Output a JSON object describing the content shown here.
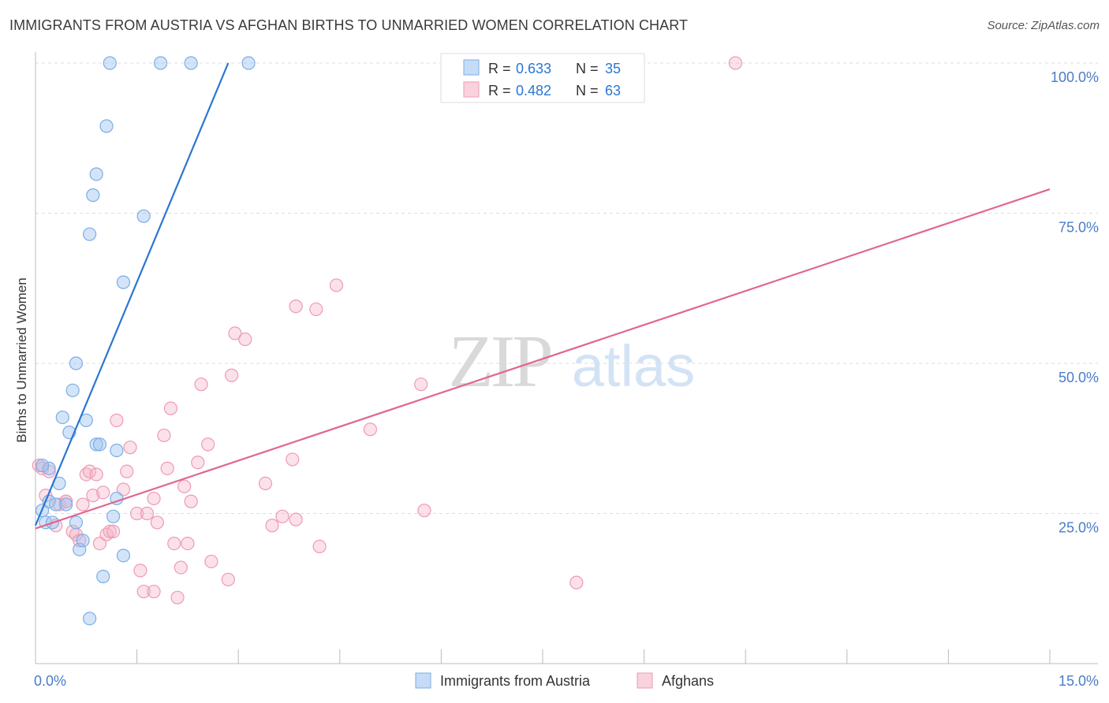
{
  "title": "IMMIGRANTS FROM AUSTRIA VS AFGHAN BIRTHS TO UNMARRIED WOMEN CORRELATION CHART",
  "source": "Source: ZipAtlas.com",
  "watermark": {
    "zip": "ZIP",
    "atlas": "atlas"
  },
  "colors": {
    "blue": "#7aaee6",
    "blue_fill": "rgba(160,196,240,0.45)",
    "blue_line": "#2b76d2",
    "pink": "#ee9ab4",
    "pink_fill": "rgba(245,180,200,0.40)",
    "pink_line": "#e06690",
    "tick_label": "#4a7cc9",
    "grid": "#dddddd"
  },
  "legend_top": [
    {
      "r_label": "R =",
      "r_value": "0.633",
      "n_label": "N =",
      "n_value": "35",
      "series": "blue"
    },
    {
      "r_label": "R =",
      "r_value": "0.482",
      "n_label": "N =",
      "n_value": "63",
      "series": "pink"
    }
  ],
  "legend_bottom": [
    {
      "label": "Immigrants from Austria",
      "series": "blue"
    },
    {
      "label": "Afghans",
      "series": "pink"
    }
  ],
  "chart_data": {
    "type": "scatter",
    "title": "IMMIGRANTS FROM AUSTRIA VS AFGHAN BIRTHS TO UNMARRIED WOMEN CORRELATION CHART",
    "xlabel": "",
    "ylabel": "Births to Unmarried Women",
    "xlim": [
      0,
      15
    ],
    "ylim": [
      0,
      100
    ],
    "x_tick_labels": [
      {
        "value": 0,
        "label": "0.0%"
      },
      {
        "value": 15,
        "label": "15.0%"
      }
    ],
    "y_tick_labels": [
      {
        "value": 25,
        "label": "25.0%"
      },
      {
        "value": 50,
        "label": "50.0%"
      },
      {
        "value": 75,
        "label": "75.0%"
      },
      {
        "value": 100,
        "label": "100.0%"
      }
    ],
    "series": [
      {
        "name": "Immigrants from Austria",
        "color": "blue",
        "R": 0.633,
        "N": 35,
        "trend": {
          "x": [
            0.0,
            2.85
          ],
          "y": [
            23.0,
            100.0
          ]
        },
        "points": [
          [
            0.1,
            25.5
          ],
          [
            0.15,
            23.5
          ],
          [
            0.2,
            27
          ],
          [
            0.25,
            23.5
          ],
          [
            0.3,
            26.5
          ],
          [
            0.35,
            30
          ],
          [
            0.4,
            41
          ],
          [
            0.45,
            26.5
          ],
          [
            0.5,
            38.5
          ],
          [
            0.55,
            45.5
          ],
          [
            0.6,
            50
          ],
          [
            0.6,
            23.5
          ],
          [
            0.65,
            19
          ],
          [
            0.7,
            20.5
          ],
          [
            0.75,
            40.5
          ],
          [
            0.8,
            71.5
          ],
          [
            0.8,
            7.5
          ],
          [
            0.85,
            78
          ],
          [
            0.9,
            81.5
          ],
          [
            0.9,
            36.5
          ],
          [
            0.95,
            36.5
          ],
          [
            1.0,
            14.5
          ],
          [
            1.05,
            89.5
          ],
          [
            1.1,
            100
          ],
          [
            1.15,
            24.5
          ],
          [
            1.2,
            27.5
          ],
          [
            1.2,
            35.5
          ],
          [
            1.3,
            63.5
          ],
          [
            1.3,
            18
          ],
          [
            1.6,
            74.5
          ],
          [
            1.85,
            100
          ],
          [
            2.3,
            100
          ],
          [
            3.15,
            100
          ],
          [
            0.2,
            32.5
          ],
          [
            0.1,
            33
          ]
        ]
      },
      {
        "name": "Afghans",
        "color": "pink",
        "R": 0.482,
        "N": 63,
        "trend": {
          "x": [
            0.0,
            15.0
          ],
          "y": [
            22.5,
            79.0
          ]
        },
        "points": [
          [
            0.05,
            33
          ],
          [
            0.15,
            28
          ],
          [
            0.3,
            23
          ],
          [
            0.35,
            26.5
          ],
          [
            0.45,
            27
          ],
          [
            0.45,
            27
          ],
          [
            0.55,
            22
          ],
          [
            0.6,
            21.5
          ],
          [
            0.65,
            20.5
          ],
          [
            0.7,
            26.5
          ],
          [
            0.75,
            31.5
          ],
          [
            0.8,
            32
          ],
          [
            0.85,
            28
          ],
          [
            0.9,
            31.5
          ],
          [
            0.95,
            20
          ],
          [
            1.0,
            28.5
          ],
          [
            1.05,
            21.5
          ],
          [
            1.1,
            22
          ],
          [
            1.15,
            22
          ],
          [
            1.2,
            40.5
          ],
          [
            1.3,
            29
          ],
          [
            1.35,
            32
          ],
          [
            1.4,
            36
          ],
          [
            1.5,
            25
          ],
          [
            1.55,
            15.5
          ],
          [
            1.6,
            12
          ],
          [
            1.65,
            25
          ],
          [
            1.75,
            12
          ],
          [
            1.75,
            27.5
          ],
          [
            1.8,
            23.5
          ],
          [
            1.9,
            38
          ],
          [
            1.95,
            32.5
          ],
          [
            2.0,
            42.5
          ],
          [
            2.05,
            20
          ],
          [
            2.1,
            11
          ],
          [
            2.15,
            16
          ],
          [
            2.2,
            29.5
          ],
          [
            2.25,
            20
          ],
          [
            2.3,
            27
          ],
          [
            2.4,
            33.5
          ],
          [
            2.45,
            46.5
          ],
          [
            2.55,
            36.5
          ],
          [
            2.6,
            17
          ],
          [
            2.85,
            14
          ],
          [
            2.9,
            48
          ],
          [
            2.95,
            55
          ],
          [
            3.1,
            54
          ],
          [
            3.4,
            30
          ],
          [
            3.5,
            23
          ],
          [
            3.65,
            24.5
          ],
          [
            3.8,
            34
          ],
          [
            3.85,
            24
          ],
          [
            3.85,
            59.5
          ],
          [
            4.15,
            59
          ],
          [
            4.2,
            19.5
          ],
          [
            4.45,
            63
          ],
          [
            4.95,
            39
          ],
          [
            5.7,
            46.5
          ],
          [
            5.75,
            25.5
          ],
          [
            8.0,
            13.5
          ],
          [
            10.35,
            100
          ],
          [
            0.1,
            32.5
          ],
          [
            0.2,
            32
          ]
        ]
      }
    ]
  }
}
